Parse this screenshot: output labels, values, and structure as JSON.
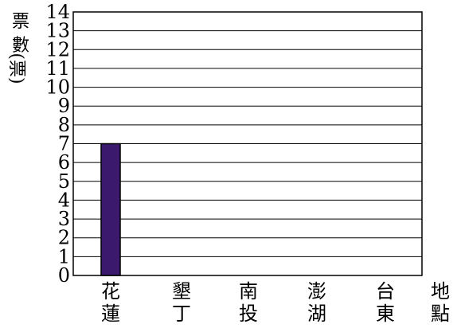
{
  "chart_data": {
    "type": "bar",
    "ylabel": "票數(票)",
    "xlabel": "地點",
    "categories": [
      "花蓮",
      "墾丁",
      "南投",
      "澎湖",
      "台東"
    ],
    "values": [
      7,
      0,
      0,
      0,
      0
    ],
    "ylim": [
      0,
      14
    ],
    "y_ticks": [
      "0",
      "1",
      "2",
      "3",
      "4",
      "5",
      "6",
      "7",
      "8",
      "9",
      "10",
      "11",
      "12",
      "13",
      "14"
    ],
    "grid": true,
    "bar_color": "#3b1a6e"
  }
}
